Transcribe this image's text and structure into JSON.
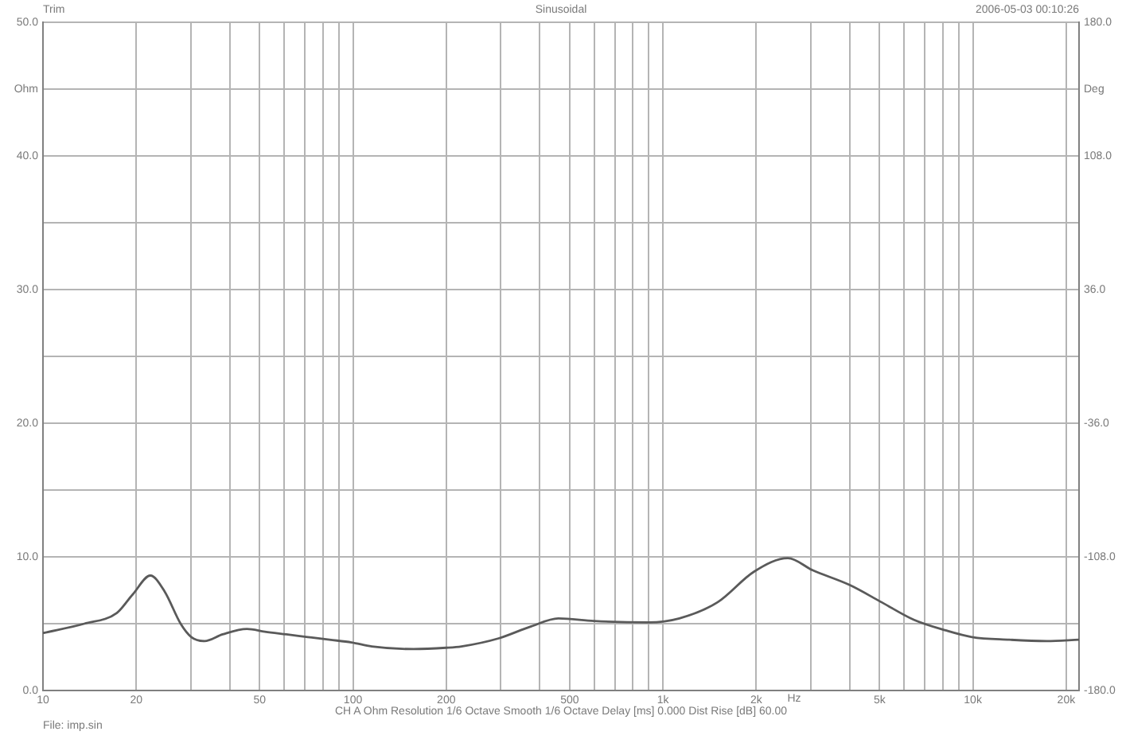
{
  "chart_data": {
    "type": "line",
    "title": "Sinusoidal",
    "xlabel": "Hz",
    "ylabel": "Ohm",
    "y2label": "Deg",
    "annotations": [
      "Trim",
      "2006-05-03 00:10:26",
      "CH A  Ohm  Resolution 1/6 Octave  Smooth 1/6 Octave  Delay [ms] 0.000  Dist Rise [dB] 60.00",
      "File: imp.sin"
    ],
    "log": "x",
    "grid": true,
    "marker": "none",
    "line_style": "solid",
    "x": [
      10,
      13.6,
      17.3,
      19.5,
      22.2,
      24.7,
      27.8,
      30.1,
      33.2,
      38,
      45.5,
      52,
      61,
      71.5,
      84,
      99,
      115,
      157,
      200,
      224,
      295,
      376,
      460,
      600,
      900,
      1130,
      1500,
      1970,
      2530,
      3040,
      4000,
      5080,
      6440,
      8170,
      9930,
      13100,
      17300,
      22000
    ],
    "series": [
      {
        "color": "#5a5a5a",
        "values": [
          4.3,
          5.0,
          5.8,
          7.2,
          8.6,
          7.4,
          5.0,
          4.0,
          3.7,
          4.2,
          4.6,
          4.4,
          4.2,
          4.0,
          3.8,
          3.6,
          3.3,
          3.1,
          3.2,
          3.3,
          3.9,
          4.8,
          5.4,
          5.2,
          5.1,
          5.4,
          6.6,
          8.9,
          9.9,
          9.0,
          7.9,
          6.6,
          5.3,
          4.5,
          4.0,
          3.8,
          3.7,
          3.8
        ]
      }
    ],
    "xlim": [
      10,
      22000
    ],
    "xticks": [
      10,
      20,
      {
        "value": 30,
        "label": null
      },
      {
        "value": 40,
        "label": null
      },
      50,
      {
        "value": 60,
        "label": null
      },
      {
        "value": 70,
        "label": null
      },
      {
        "value": 80,
        "label": null
      },
      {
        "value": 90,
        "label": null
      },
      100,
      200,
      {
        "value": 300,
        "label": null
      },
      {
        "value": 400,
        "label": null
      },
      500,
      {
        "value": 600,
        "label": null
      },
      {
        "value": 700,
        "label": null
      },
      {
        "value": 800,
        "label": null
      },
      {
        "value": 900,
        "label": null
      },
      {
        "value": 1000,
        "label": "1k"
      },
      {
        "value": 2000,
        "label": "2k"
      },
      {
        "value": 3000,
        "label": null
      },
      {
        "value": 4000,
        "label": null
      },
      {
        "value": 5000,
        "label": "5k"
      },
      {
        "value": 6000,
        "label": null
      },
      {
        "value": 7000,
        "label": null
      },
      {
        "value": 8000,
        "label": null
      },
      {
        "value": 9000,
        "label": null
      },
      {
        "value": 10000,
        "label": "10k"
      },
      {
        "value": 20000,
        "label": "20k"
      }
    ],
    "ylim": [
      0,
      50
    ],
    "yticks": [
      {
        "value": 0,
        "label": "0.0"
      },
      {
        "value": 5,
        "label": null
      },
      {
        "value": 10,
        "label": "10.0"
      },
      {
        "value": 15,
        "label": null
      },
      {
        "value": 20,
        "label": "20.0"
      },
      {
        "value": 25,
        "label": null
      },
      {
        "value": 30,
        "label": "30.0"
      },
      {
        "value": 35,
        "label": null
      },
      {
        "value": 40,
        "label": "40.0"
      },
      {
        "value": 45,
        "label": null
      },
      {
        "value": 50,
        "label": "50.0"
      }
    ],
    "y2lim": [
      -180,
      180
    ],
    "y2ticks": [
      {
        "value": -180,
        "label": "-180.0"
      },
      {
        "value": -108,
        "label": "-108.0"
      },
      {
        "value": -36,
        "label": "-36.0"
      },
      {
        "value": 36,
        "label": "36.0"
      },
      {
        "value": 108,
        "label": "108.0"
      },
      {
        "value": 180,
        "label": "180.0"
      }
    ]
  }
}
